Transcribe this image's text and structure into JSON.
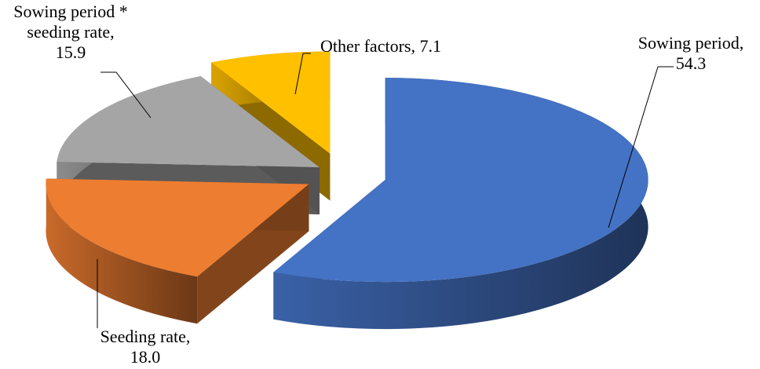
{
  "chart_data": {
    "type": "pie",
    "variant": "3d-exploded",
    "title": "",
    "slices": [
      {
        "label": "Sowing period",
        "value": 54.3,
        "color": "#4472C4",
        "label_text": [
          "Sowing period,",
          "54.3"
        ]
      },
      {
        "label": "Seeding rate",
        "value": 18.0,
        "color": "#ED7D31",
        "label_text": [
          "Seeding rate,",
          "18.0"
        ]
      },
      {
        "label": "Sowing period * seeding rate",
        "value": 15.9,
        "color": "#A5A5A5",
        "label_text": [
          "Sowing period *",
          "seeding rate,",
          "15.9"
        ]
      },
      {
        "label": "Other factors",
        "value": 7.1,
        "color": "#FFC000",
        "label_text": [
          "Other factors, 7.1"
        ]
      }
    ],
    "legend": "none",
    "data_labels": "category-and-value with leader lines"
  }
}
